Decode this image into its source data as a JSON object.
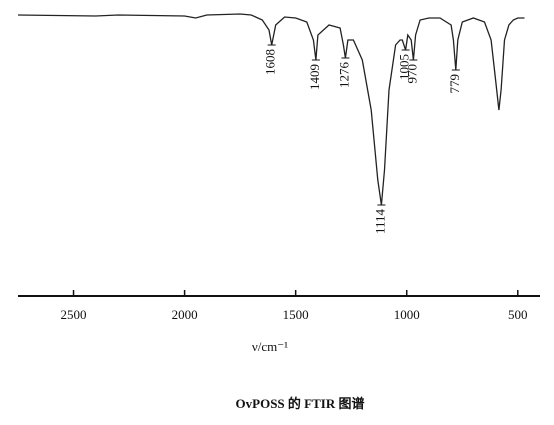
{
  "chart_data": {
    "type": "line",
    "title": "OvPOSS 的 FTIR 图谱",
    "xlabel": "ν/cm⁻¹",
    "color": "#222222",
    "xlim": [
      2750,
      400
    ],
    "xticks": [
      2500,
      2000,
      1500,
      1000,
      500
    ],
    "ylim": [
      0,
      100
    ],
    "x": [
      2750,
      2400,
      2300,
      2000,
      1950,
      1900,
      1750,
      1700,
      1650,
      1620,
      1608,
      1590,
      1550,
      1500,
      1450,
      1420,
      1409,
      1400,
      1350,
      1300,
      1285,
      1276,
      1265,
      1240,
      1200,
      1160,
      1130,
      1114,
      1100,
      1080,
      1050,
      1030,
      1020,
      1005,
      995,
      980,
      970,
      960,
      940,
      900,
      850,
      800,
      790,
      779,
      770,
      750,
      700,
      650,
      620,
      600,
      585,
      575,
      560,
      540,
      520,
      500,
      470
    ],
    "values": [
      97.5,
      97,
      97.5,
      97,
      96,
      97.5,
      98,
      97.5,
      95,
      90,
      82.5,
      92.5,
      96.5,
      96,
      94,
      85,
      75,
      87.5,
      92.5,
      91,
      82.5,
      76,
      85,
      85,
      75,
      50,
      15,
      2.5,
      20,
      60,
      82.5,
      85,
      85,
      80,
      87.5,
      85,
      75,
      87.5,
      95,
      96,
      96,
      92.5,
      85,
      70,
      85,
      94,
      96,
      94,
      85,
      65,
      50,
      60,
      85,
      92.5,
      95,
      96,
      96
    ],
    "peak_labels": [
      1608,
      1409,
      1276,
      1114,
      1005,
      970,
      779
    ]
  }
}
